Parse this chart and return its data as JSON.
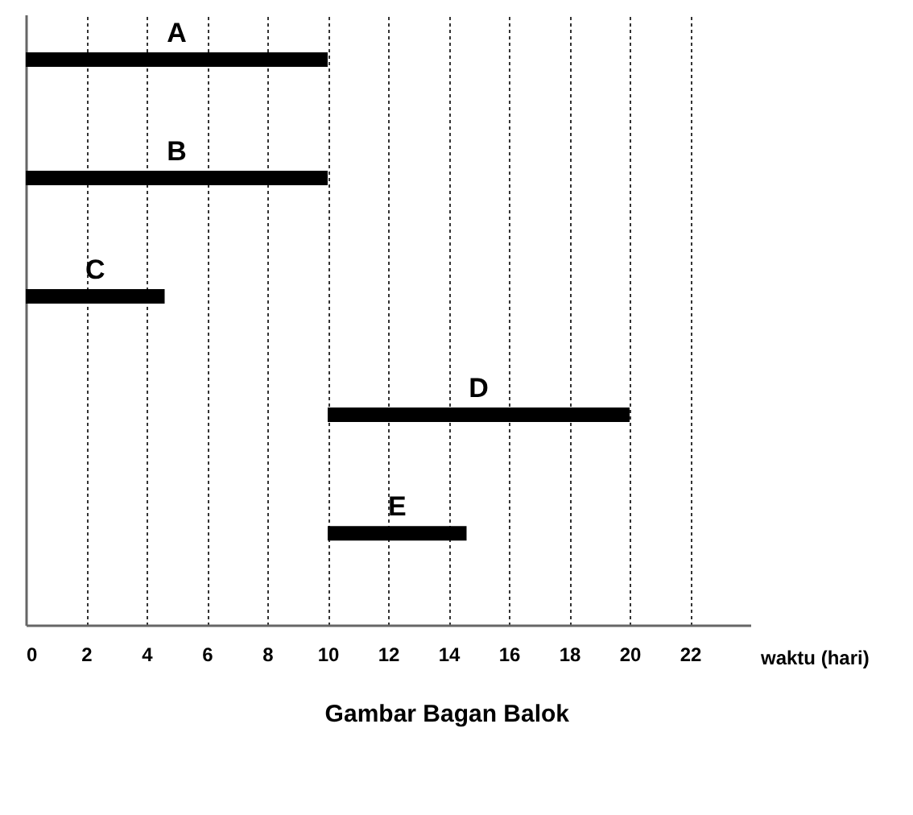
{
  "chart_data": {
    "type": "bar",
    "orientation": "horizontal",
    "title": "Gambar Bagan Balok",
    "xlabel": "waktu (hari)",
    "categories": [
      "A",
      "B",
      "C",
      "D",
      "E"
    ],
    "base": [
      0,
      0,
      0,
      10,
      10
    ],
    "values": [
      10,
      10,
      4.6,
      10,
      4.6
    ],
    "color": "#000000",
    "xlim": [
      0,
      24
    ],
    "xticks": [
      0,
      2,
      4,
      6,
      8,
      10,
      12,
      14,
      16,
      18,
      20,
      22
    ],
    "grid": "x",
    "tick_labels": "x"
  }
}
